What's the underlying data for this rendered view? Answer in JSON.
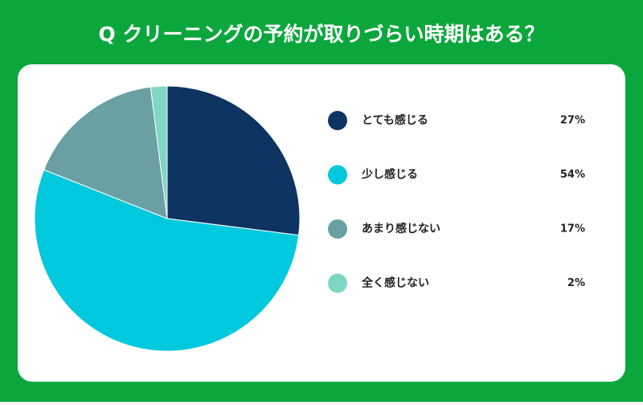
{
  "chart_data": {
    "type": "pie",
    "title": "Q クリーニングの予約が取りづらい時期はある？",
    "categories": [
      "とても感じる",
      "少し感じる",
      "あまり感じない",
      "全く感じない"
    ],
    "values": [
      27,
      54,
      17,
      2
    ],
    "value_labels": [
      "27%",
      "54%",
      "17%",
      "2%"
    ],
    "colors": [
      "#0e3462",
      "#00c8dd",
      "#6aa0a3",
      "#7fd6c3"
    ]
  }
}
